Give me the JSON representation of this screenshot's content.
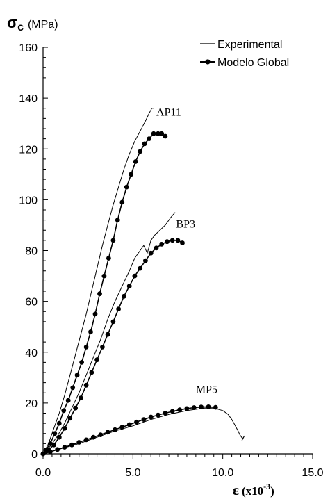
{
  "chart_data": {
    "type": "line",
    "ylabel_symbol": "σ",
    "ylabel_subscript": "c",
    "ylabel_unit": "(MPa)",
    "xlabel_symbol": "ε",
    "xlabel_unit": "(x10",
    "xlabel_exp": "-3",
    "xlabel_close": ")",
    "xlim": [
      0,
      15
    ],
    "ylim": [
      0,
      160
    ],
    "x_ticks": [
      0,
      5,
      10,
      15
    ],
    "x_tick_labels": [
      "0.0",
      "5.0",
      "10.0",
      "15.0"
    ],
    "y_ticks": [
      0,
      20,
      40,
      60,
      80,
      100,
      120,
      140,
      160
    ],
    "y_tick_labels": [
      "0",
      "20",
      "40",
      "60",
      "80",
      "100",
      "120",
      "140",
      "160"
    ],
    "legend": {
      "position": "top-right",
      "entries": [
        {
          "name": "Experimental",
          "style": "line"
        },
        {
          "name": "Modelo Global",
          "style": "line-marker"
        }
      ]
    },
    "curve_labels": [
      {
        "text": "AP11",
        "x": 6.3,
        "y": 133
      },
      {
        "text": "BP3",
        "x": 7.4,
        "y": 89
      },
      {
        "text": "MP5",
        "x": 8.5,
        "y": 24
      }
    ],
    "series": [
      {
        "group": "AP11",
        "kind": "experimental",
        "x": [
          0,
          0.3,
          0.6,
          0.9,
          1.2,
          1.5,
          1.8,
          2.1,
          2.4,
          2.7,
          3.0,
          3.3,
          3.6,
          3.9,
          4.2,
          4.5,
          4.8,
          5.1,
          5.4,
          5.7,
          5.9,
          6.05,
          6.15
        ],
        "y": [
          0,
          4,
          10,
          16,
          23,
          31,
          39,
          47,
          55,
          64,
          73,
          82,
          90,
          98,
          105,
          112,
          118,
          123,
          127,
          131,
          134,
          136,
          136
        ]
      },
      {
        "group": "AP11",
        "kind": "model",
        "x": [
          0,
          0.15,
          0.4,
          0.65,
          0.9,
          1.15,
          1.4,
          1.65,
          1.9,
          2.15,
          2.4,
          2.65,
          2.9,
          3.15,
          3.4,
          3.65,
          3.9,
          4.15,
          4.4,
          4.65,
          4.9,
          5.15,
          5.4,
          5.65,
          5.9,
          6.15,
          6.4,
          6.6,
          6.8
        ],
        "y": [
          0,
          1.5,
          4,
          8,
          12,
          17,
          21,
          26,
          31,
          36,
          42,
          48,
          55,
          63,
          70,
          77,
          84,
          92,
          99,
          105,
          110,
          115,
          119,
          122,
          124,
          126,
          126,
          126,
          125
        ]
      },
      {
        "group": "BP3",
        "kind": "experimental",
        "x": [
          0,
          0.4,
          0.8,
          1.2,
          1.6,
          2.0,
          2.4,
          2.8,
          3.2,
          3.6,
          4.0,
          4.4,
          4.8,
          5.1,
          5.4,
          5.6,
          5.8,
          6.0,
          6.2,
          6.5,
          6.8,
          7.1,
          7.35
        ],
        "y": [
          0,
          3,
          7,
          12,
          18,
          24,
          31,
          38,
          45,
          53,
          60,
          66,
          72,
          77,
          80,
          82,
          79,
          84,
          86,
          88,
          90,
          93,
          95
        ]
      },
      {
        "group": "BP3",
        "kind": "model",
        "x": [
          0,
          0.3,
          0.6,
          0.9,
          1.2,
          1.5,
          1.8,
          2.1,
          2.4,
          2.7,
          3.0,
          3.3,
          3.6,
          3.9,
          4.2,
          4.5,
          4.8,
          5.1,
          5.4,
          5.7,
          6.0,
          6.3,
          6.6,
          6.9,
          7.2,
          7.5,
          7.75
        ],
        "y": [
          0,
          1.5,
          3.5,
          6.5,
          10,
          14,
          18,
          22,
          27,
          32,
          37,
          42,
          47,
          52,
          57,
          62,
          66,
          70,
          73,
          76,
          79,
          81,
          82.5,
          83.5,
          84,
          84,
          83
        ]
      },
      {
        "group": "MP5",
        "kind": "experimental",
        "x": [
          0,
          1,
          2,
          3,
          4,
          5,
          6,
          7,
          8,
          9,
          9.5,
          10,
          10.3,
          10.5,
          10.7,
          10.85,
          10.95,
          11.1,
          11.2,
          11.05
        ],
        "y": [
          0,
          2,
          4,
          6.5,
          9,
          11,
          13.5,
          15.5,
          17,
          18,
          18,
          17,
          15.5,
          13.5,
          11,
          9,
          7.5,
          6,
          7,
          5
        ]
      },
      {
        "group": "MP5",
        "kind": "model",
        "x": [
          0,
          0.4,
          0.8,
          1.2,
          1.6,
          2.0,
          2.4,
          2.8,
          3.2,
          3.6,
          4.0,
          4.4,
          4.8,
          5.2,
          5.6,
          6.0,
          6.4,
          6.8,
          7.2,
          7.6,
          8.0,
          8.4,
          8.8,
          9.2,
          9.6
        ],
        "y": [
          0,
          0.8,
          1.7,
          2.6,
          3.5,
          4.5,
          5.5,
          6.5,
          7.5,
          8.5,
          9.5,
          10.5,
          11.5,
          12.5,
          13.5,
          14.5,
          15.3,
          16,
          16.7,
          17.3,
          17.8,
          18.2,
          18.4,
          18.5,
          18.3
        ]
      }
    ]
  }
}
